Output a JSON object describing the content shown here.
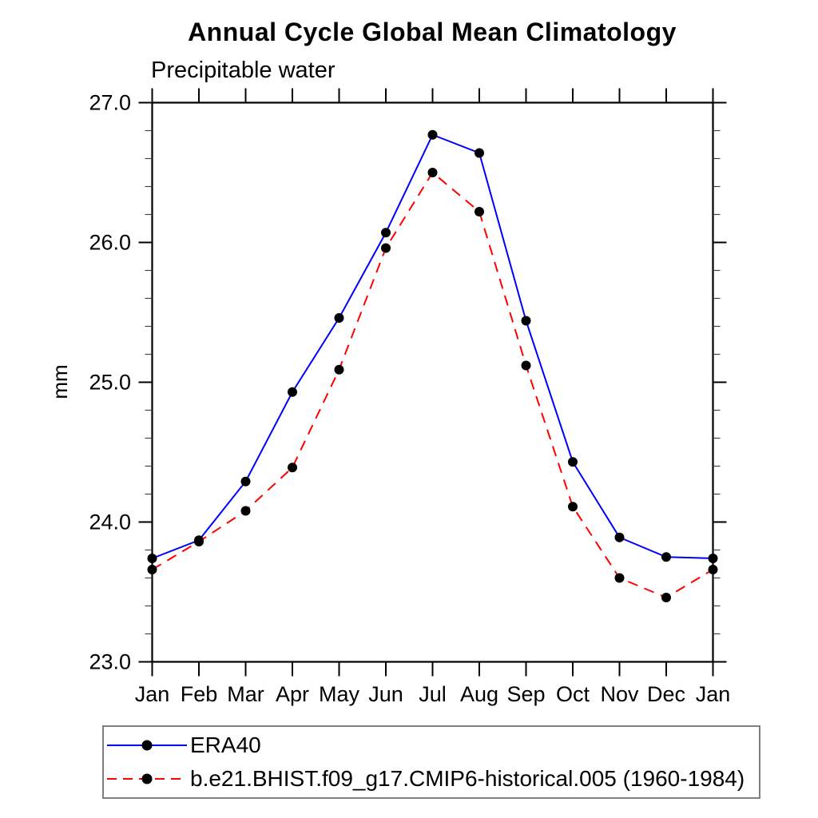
{
  "page": {
    "title": "Annual Cycle Global Mean Climatology",
    "subtitle": "Precipitable water"
  },
  "chart_data": {
    "type": "line",
    "title": "Annual Cycle Global Mean Climatology",
    "subtitle": "Precipitable water",
    "xlabel": "",
    "ylabel": "mm",
    "x_categories": [
      "Jan",
      "Feb",
      "Mar",
      "Apr",
      "May",
      "Jun",
      "Jul",
      "Aug",
      "Sep",
      "Oct",
      "Nov",
      "Dec",
      "Jan"
    ],
    "ylim": [
      23.0,
      27.0
    ],
    "y_major_ticks": [
      23.0,
      24.0,
      25.0,
      26.0,
      27.0
    ],
    "y_tick_labels": [
      "23.0",
      "24.0",
      "25.0",
      "26.0",
      "27.0"
    ],
    "y_minor_step": 0.2,
    "grid": false,
    "legend_position": "bottom-outside",
    "marker": "filled-circle",
    "marker_color": "#000000",
    "series": [
      {
        "name": "ERA40",
        "color": "#0000ff",
        "line_style": "solid",
        "values": [
          23.74,
          23.87,
          24.29,
          24.93,
          25.46,
          26.07,
          26.77,
          26.64,
          25.44,
          24.43,
          23.89,
          23.75,
          23.74
        ]
      },
      {
        "name": "b.e21.BHIST.f09_g17.CMIP6-historical.005 (1960-1984)",
        "color": "#ff0000",
        "line_style": "dashed",
        "values": [
          23.66,
          23.86,
          24.08,
          24.39,
          25.09,
          25.96,
          26.5,
          26.22,
          25.12,
          24.11,
          23.6,
          23.46,
          23.66
        ]
      }
    ]
  }
}
